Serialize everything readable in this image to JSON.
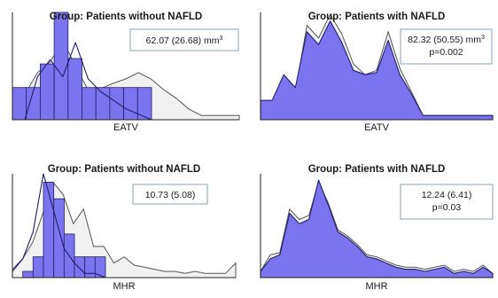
{
  "chart_data": [
    {
      "type": "area",
      "title": "Group: Patients without NAFLD",
      "xlabel": "EATV",
      "ylabel": "",
      "annotation": {
        "lines": [
          "62.07 (26.68) mm"
        ],
        "superscript": "3"
      },
      "colors": {
        "fill": "#7b74ee",
        "edge": "#1f1f6b",
        "outline": "#555555",
        "outline_fill": "#f1f1f1"
      },
      "ylim": [
        0,
        100
      ],
      "series": [
        {
          "kind": "histogram",
          "x": [
            0,
            1,
            2,
            3,
            4,
            5,
            6,
            7,
            8,
            9,
            10
          ],
          "values": [
            30,
            30,
            52,
            100,
            57,
            30,
            30,
            30,
            30,
            30,
            0
          ]
        },
        {
          "kind": "polygon",
          "x": [
            0,
            1,
            2,
            3,
            4,
            5,
            6,
            7,
            8,
            9,
            10,
            11,
            12,
            13,
            14,
            15,
            16,
            17,
            18
          ],
          "values": [
            10,
            24,
            44,
            54,
            74,
            50,
            28,
            29,
            34,
            38,
            44,
            38,
            28,
            20,
            10,
            4,
            4,
            4,
            4
          ]
        },
        {
          "kind": "line",
          "x": [
            0,
            1,
            2,
            3,
            4,
            5,
            6,
            7,
            8,
            9,
            10
          ],
          "values": [
            0,
            40,
            56,
            40,
            72,
            38,
            26,
            18,
            10,
            5,
            0
          ]
        }
      ]
    },
    {
      "type": "area",
      "title": "Group: Patients with NAFLD",
      "xlabel": "EATV",
      "ylabel": "",
      "annotation": {
        "lines": [
          "82.32 (50.55) mm",
          "p=0.002"
        ],
        "superscript": "3"
      },
      "colors": {
        "fill": "#7b74ee",
        "edge": "#1f1f6b",
        "outline": "#555555",
        "outline_fill": "#f1f1f1"
      },
      "ylim": [
        0,
        100
      ],
      "series": [
        {
          "kind": "polygon",
          "x": [
            0,
            1,
            2,
            3,
            4,
            5,
            6,
            7,
            8,
            9,
            10,
            11,
            12,
            13,
            14,
            15,
            16,
            17,
            18,
            19,
            20
          ],
          "values": [
            18,
            12,
            36,
            26,
            88,
            76,
            98,
            80,
            52,
            42,
            46,
            82,
            48,
            26,
            4,
            4,
            4,
            4,
            4,
            4,
            4
          ]
        },
        {
          "kind": "area",
          "x": [
            0,
            1,
            2,
            3,
            4,
            5,
            6,
            7,
            8,
            9,
            10,
            11,
            12,
            13,
            14,
            15,
            16,
            17,
            18,
            19,
            20
          ],
          "values": [
            18,
            18,
            42,
            30,
            82,
            70,
            92,
            72,
            46,
            42,
            44,
            74,
            42,
            24,
            4,
            4,
            4,
            4,
            4,
            4,
            4
          ]
        }
      ]
    },
    {
      "type": "area",
      "title": "Group: Patients without NAFLD",
      "xlabel": "MHR",
      "ylabel": "",
      "annotation": {
        "lines": [
          "10.73 (5.08)"
        ],
        "superscript": ""
      },
      "colors": {
        "fill": "#7b74ee",
        "edge": "#1f1f6b",
        "outline": "#555555",
        "outline_fill": "#f1f1f1"
      },
      "ylim": [
        0,
        100
      ],
      "series": [
        {
          "kind": "histogram",
          "x": [
            0,
            1,
            2,
            3,
            4,
            5,
            6,
            7,
            8,
            9
          ],
          "values": [
            0,
            6,
            20,
            92,
            76,
            42,
            20,
            20,
            20,
            0
          ]
        },
        {
          "kind": "polygon",
          "x": [
            0,
            1,
            2,
            3,
            4,
            5,
            6,
            7,
            8,
            9,
            10,
            11,
            12,
            13,
            14,
            15,
            16,
            17,
            18,
            19,
            20,
            21,
            22
          ],
          "values": [
            8,
            18,
            34,
            62,
            92,
            80,
            52,
            66,
            30,
            30,
            14,
            20,
            12,
            10,
            8,
            6,
            6,
            4,
            6,
            4,
            4,
            4,
            14
          ]
        },
        {
          "kind": "line",
          "x": [
            0,
            1,
            2,
            3,
            4,
            5,
            6,
            7,
            8,
            9
          ],
          "values": [
            6,
            18,
            44,
            100,
            64,
            28,
            14,
            4,
            4,
            0
          ]
        }
      ]
    },
    {
      "type": "area",
      "title": "Group: Patients with NAFLD",
      "xlabel": "MHR",
      "ylabel": "",
      "annotation": {
        "lines": [
          "12.24 (6.41)",
          "p=0.03"
        ],
        "superscript": ""
      },
      "colors": {
        "fill": "#7b74ee",
        "edge": "#1f1f6b",
        "outline": "#555555",
        "outline_fill": "#f1f1f1"
      },
      "ylim": [
        0,
        100
      ],
      "series": [
        {
          "kind": "polygon",
          "x": [
            0,
            1,
            2,
            3,
            4,
            5,
            6,
            7,
            8,
            9,
            10,
            11,
            12,
            13,
            14,
            15,
            16,
            17,
            18,
            19,
            20,
            21,
            22,
            23,
            24
          ],
          "values": [
            6,
            22,
            24,
            66,
            56,
            60,
            92,
            72,
            46,
            40,
            32,
            22,
            20,
            16,
            12,
            10,
            10,
            8,
            10,
            12,
            6,
            8,
            6,
            12,
            4
          ]
        },
        {
          "kind": "area",
          "x": [
            0,
            1,
            2,
            3,
            4,
            5,
            6,
            7,
            8,
            9,
            10,
            11,
            12,
            13,
            14,
            15,
            16,
            17,
            18,
            19,
            20,
            21,
            22,
            23,
            24
          ],
          "values": [
            6,
            18,
            22,
            62,
            52,
            56,
            94,
            70,
            44,
            38,
            30,
            20,
            18,
            14,
            10,
            8,
            8,
            6,
            8,
            10,
            4,
            6,
            4,
            10,
            4
          ]
        }
      ]
    }
  ]
}
